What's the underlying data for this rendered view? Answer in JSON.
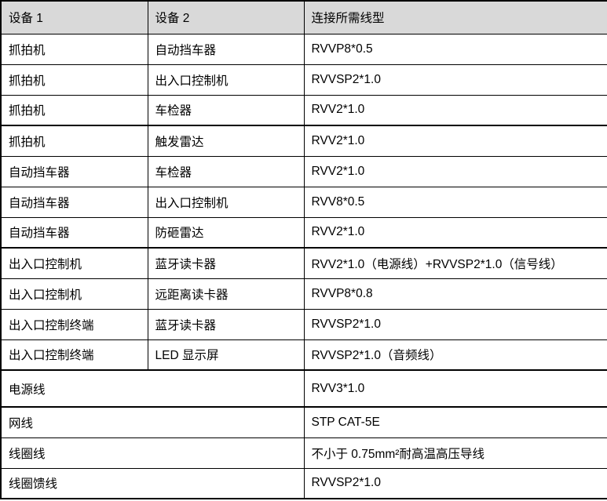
{
  "table": {
    "columns": [
      {
        "label": "设备 1"
      },
      {
        "label": "设备 2"
      },
      {
        "label": "连接所需线型"
      }
    ],
    "rows": [
      {
        "device1": "抓拍机",
        "device2": "自动挡车器",
        "cable": "RVVP8*0.5"
      },
      {
        "device1": "抓拍机",
        "device2": "出入口控制机",
        "cable": "RVVSP2*1.0"
      },
      {
        "device1": "抓拍机",
        "device2": "车检器",
        "cable": "RVV2*1.0"
      },
      {
        "device1": "抓拍机",
        "device2": "触发雷达",
        "cable": "RVV2*1.0"
      },
      {
        "device1": "自动挡车器",
        "device2": "车检器",
        "cable": "RVV2*1.0"
      },
      {
        "device1": "自动挡车器",
        "device2": "出入口控制机",
        "cable": "RVV8*0.5"
      },
      {
        "device1": "自动挡车器",
        "device2": "防砸雷达",
        "cable": "RVV2*1.0"
      },
      {
        "device1": "出入口控制机",
        "device2": "蓝牙读卡器",
        "cable": "RVV2*1.0（电源线）+RVVSP2*1.0（信号线）"
      },
      {
        "device1": "出入口控制机",
        "device2": "远距离读卡器",
        "cable": "RVVP8*0.8"
      },
      {
        "device1": "出入口控制终端",
        "device2": "蓝牙读卡器",
        "cable": "RVVSP2*1.0"
      },
      {
        "device1": "出入口控制终端",
        "device2": "LED 显示屏",
        "cable": "RVVSP2*1.0（音频线）"
      },
      {
        "device1": "电源线",
        "merged": true,
        "cable": "RVV3*1.0"
      },
      {
        "device1": "网线",
        "merged": true,
        "cable": "STP CAT-5E"
      },
      {
        "device1": "线圈线",
        "merged": true,
        "cable": "不小于 0.75mm²耐高温高压导线"
      },
      {
        "device1": "线圈馈线",
        "merged": true,
        "cable": "RVVSP2*1.0"
      }
    ]
  },
  "colors": {
    "header_bg": "#d9d9d9",
    "border": "#000000",
    "text": "#000000",
    "background": "#ffffff"
  }
}
